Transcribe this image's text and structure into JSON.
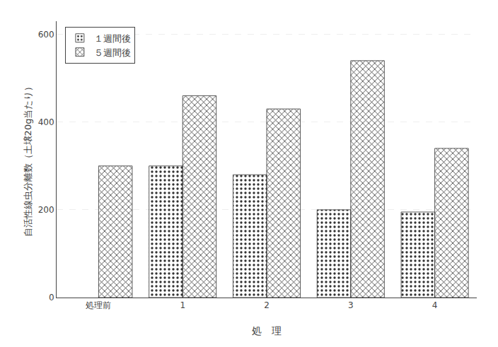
{
  "chart_data": {
    "type": "bar",
    "categories": [
      "処理前",
      "1",
      "2",
      "3",
      "4"
    ],
    "series": [
      {
        "name": "１週間後",
        "color": "#d8d8b0",
        "values": [
          null,
          300,
          280,
          200,
          195
        ]
      },
      {
        "name": "５週間後",
        "color": "#808080",
        "values": [
          300,
          460,
          430,
          540,
          340
        ]
      }
    ],
    "xlabel": "処　理",
    "ylabel": "自活性線虫分離数（土壌20g当たり）",
    "ylim": [
      0,
      630
    ],
    "yticks": [
      0,
      200,
      400,
      600
    ],
    "grid": true,
    "legend": "upper left"
  }
}
